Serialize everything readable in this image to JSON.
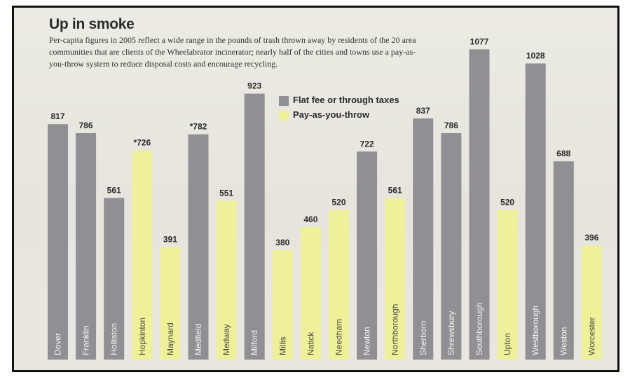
{
  "title": "Up in smoke",
  "subtitle": "Per-capita figures in 2005 reflect a wide range in the pounds of trash thrown away by residents of the 20 area communities that are clients of the Wheelabrator incinerator; nearly half of the cities and towns use a pay-as-you-throw system to reduce disposal costs and encourage recycling.",
  "legend": {
    "flat": "Flat fee or through taxes",
    "payt": "Pay-as-you-throw"
  },
  "colors": {
    "flat": "#8f8f94",
    "payt": "#eef19a",
    "text": "#2b2b2b"
  },
  "chart_data": {
    "type": "bar",
    "title": "Up in smoke",
    "xlabel": "",
    "ylabel": "",
    "ylim": [
      0,
      1100
    ],
    "grid": false,
    "legend_position": "top-center",
    "bars": [
      {
        "category": "Dover",
        "value": 817,
        "label": "817",
        "group": "flat"
      },
      {
        "category": "Franklin",
        "value": 786,
        "label": "786",
        "group": "flat"
      },
      {
        "category": "Holliston",
        "value": 561,
        "label": "561",
        "group": "flat"
      },
      {
        "category": "Hopkinton",
        "value": 726,
        "label": "*726",
        "group": "payt"
      },
      {
        "category": "Maynard",
        "value": 391,
        "label": "391",
        "group": "payt"
      },
      {
        "category": "Medfield",
        "value": 782,
        "label": "*782",
        "group": "flat"
      },
      {
        "category": "Medway",
        "value": 551,
        "label": "551",
        "group": "payt"
      },
      {
        "category": "Milford",
        "value": 923,
        "label": "923",
        "group": "flat"
      },
      {
        "category": "Millis",
        "value": 380,
        "label": "380",
        "group": "payt"
      },
      {
        "category": "Natick",
        "value": 460,
        "label": "460",
        "group": "payt"
      },
      {
        "category": "Needham",
        "value": 520,
        "label": "520",
        "group": "payt"
      },
      {
        "category": "Newton",
        "value": 722,
        "label": "722",
        "group": "flat"
      },
      {
        "category": "Northborough",
        "value": 561,
        "label": "561",
        "group": "payt"
      },
      {
        "category": "Sherborn",
        "value": 837,
        "label": "837",
        "group": "flat"
      },
      {
        "category": "Shrewsbury",
        "value": 786,
        "label": "786",
        "group": "flat"
      },
      {
        "category": "Southborough",
        "value": 1077,
        "label": "1077",
        "group": "flat"
      },
      {
        "category": "Upton",
        "value": 520,
        "label": "520",
        "group": "payt"
      },
      {
        "category": "Westborough",
        "value": 1028,
        "label": "1028",
        "group": "flat"
      },
      {
        "category": "Weston",
        "value": 688,
        "label": "688",
        "group": "flat"
      },
      {
        "category": "Worcester",
        "value": 396,
        "label": "396",
        "group": "payt"
      }
    ]
  }
}
